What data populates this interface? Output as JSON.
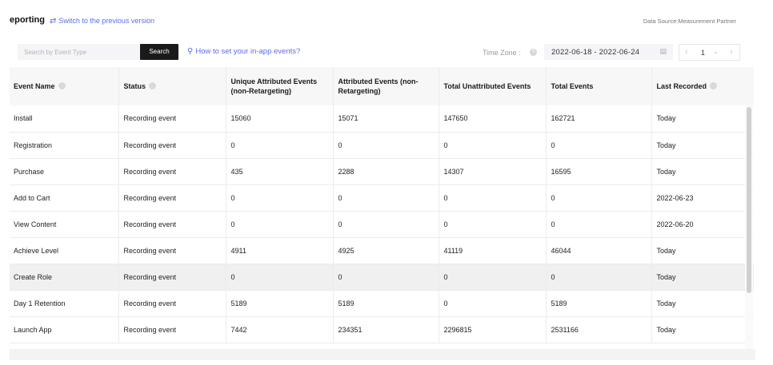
{
  "header": {
    "title": "eporting",
    "switch_label": "Switch to the previous version",
    "data_source": "Data Source:Measurement Partner"
  },
  "filters": {
    "search_placeholder": "Search by Event Type",
    "search_button": "Search",
    "howto_link": "How to set your in-app events?",
    "timezone_label": "Time Zone :",
    "date_range": "2022-06-18 - 2022-06-24",
    "page_number": "1"
  },
  "table": {
    "columns": [
      "Event Name",
      "Status",
      "Unique Attributed Events (non-Retargeting)",
      "Attributed Events (non-Retargeting)",
      "Total Unattributed Events",
      "Total Events",
      "Last Recorded"
    ],
    "rows": [
      [
        "Install",
        "Recording event",
        "15060",
        "15071",
        "147650",
        "162721",
        "Today"
      ],
      [
        "Registration",
        "Recording event",
        "0",
        "0",
        "0",
        "0",
        "Today"
      ],
      [
        "Purchase",
        "Recording event",
        "435",
        "2288",
        "14307",
        "16595",
        "Today"
      ],
      [
        "Add to Cart",
        "Recording event",
        "0",
        "0",
        "0",
        "0",
        "2022-06-23"
      ],
      [
        "View Content",
        "Recording event",
        "0",
        "0",
        "0",
        "0",
        "2022-06-20"
      ],
      [
        "Achieve Level",
        "Recording event",
        "4911",
        "4925",
        "41119",
        "46044",
        "Today"
      ],
      [
        "Create Role",
        "Recording event",
        "0",
        "0",
        "0",
        "0",
        "Today"
      ],
      [
        "Day 1 Retention",
        "Recording event",
        "5189",
        "5189",
        "0",
        "5189",
        "Today"
      ],
      [
        "Launch App",
        "Recording event",
        "7442",
        "234351",
        "2296815",
        "2531166",
        "Today"
      ]
    ],
    "highlighted_row": 6
  },
  "colors": {
    "accent": "#5b6cf0",
    "button_dark": "#1a1a1a",
    "header_bg": "#f7f7f8"
  }
}
